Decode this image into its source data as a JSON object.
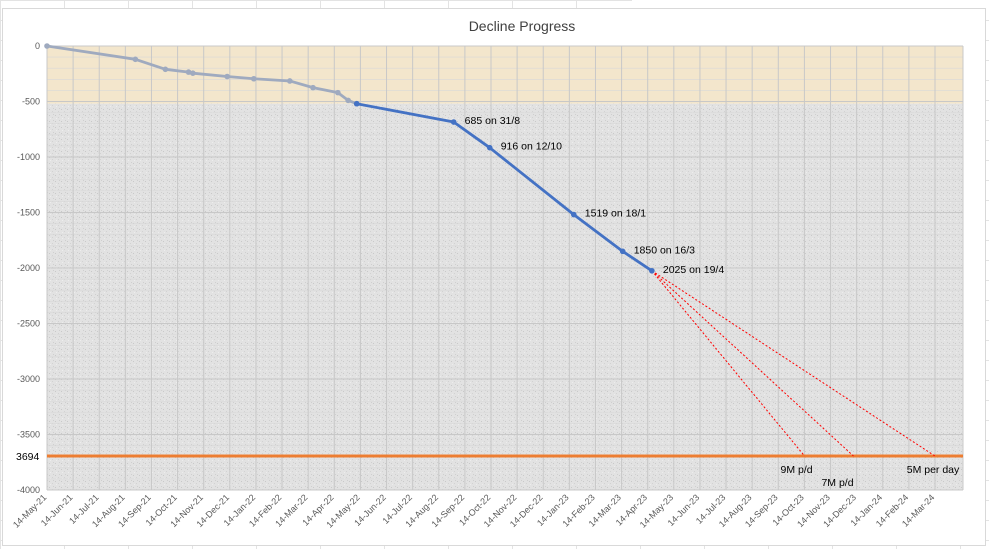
{
  "chart_data": {
    "type": "line",
    "title": "Decline Progress",
    "xlabel": "",
    "ylabel": "",
    "x_tick_labels": [
      "14-May-21",
      "14-Jun-21",
      "14-Jul-21",
      "14-Aug-21",
      "14-Sep-21",
      "14-Oct-21",
      "14-Nov-21",
      "14-Dec-21",
      "14-Jan-22",
      "14-Feb-22",
      "14-Mar-22",
      "14-Apr-22",
      "14-May-22",
      "14-Jun-22",
      "14-Jul-22",
      "14-Aug-22",
      "14-Sep-22",
      "14-Oct-22",
      "14-Nov-22",
      "14-Dec-22",
      "14-Jan-23",
      "14-Feb-23",
      "14-Mar-23",
      "14-Apr-23",
      "14-May-23",
      "14-Jun-23",
      "14-Jul-23",
      "14-Aug-23",
      "14-Sep-23",
      "14-Oct-23",
      "14-Nov-23",
      "14-Dec-23",
      "14-Jan-24",
      "14-Feb-24",
      "14-Mar-24"
    ],
    "y_tick_labels": [
      "0",
      "-500",
      "-1000",
      "-1500",
      "-2000",
      "-2500",
      "-3000",
      "-3500",
      "-4000"
    ],
    "ylim": [
      -4000,
      0
    ],
    "grid": true,
    "series": [
      {
        "color": "#9faabf",
        "points": [
          {
            "x": "2021-05-14",
            "y": 0
          },
          {
            "x": "2021-08-25",
            "y": -120
          },
          {
            "x": "2021-09-29",
            "y": -210
          },
          {
            "x": "2021-10-26",
            "y": -235
          },
          {
            "x": "2021-10-31",
            "y": -245
          },
          {
            "x": "2021-12-10",
            "y": -275
          },
          {
            "x": "2022-01-10",
            "y": -295
          },
          {
            "x": "2022-02-21",
            "y": -315
          },
          {
            "x": "2022-03-20",
            "y": -375
          },
          {
            "x": "2022-04-18",
            "y": -420
          },
          {
            "x": "2022-04-30",
            "y": -490
          },
          {
            "x": "2022-05-10",
            "y": -520
          }
        ]
      },
      {
        "color": "#4472c4",
        "points": [
          {
            "x": "2022-05-10",
            "y": -520
          },
          {
            "x": "2022-08-31",
            "y": -685
          },
          {
            "x": "2022-10-12",
            "y": -916
          },
          {
            "x": "2023-01-18",
            "y": -1519
          },
          {
            "x": "2023-03-16",
            "y": -1850
          },
          {
            "x": "2023-04-19",
            "y": -2025
          }
        ]
      }
    ],
    "annotations": [
      {
        "text": "685 on 31/8",
        "x": "2022-08-31",
        "y": -685
      },
      {
        "text": "916 on 12/10",
        "x": "2022-10-12",
        "y": -916
      },
      {
        "text": "1519 on 18/1",
        "x": "2023-01-18",
        "y": -1519
      },
      {
        "text": "1850 on 16/3",
        "x": "2023-03-16",
        "y": -1850
      },
      {
        "text": "2025 on 19/4",
        "x": "2023-04-19",
        "y": -2025
      }
    ],
    "target": {
      "label": "3694",
      "y": -3694,
      "color": "#ed7d31"
    },
    "projections": [
      {
        "label": "9M p/d",
        "from": {
          "x": "2023-04-19",
          "y": -2025
        },
        "to": {
          "x": "2023-10-14",
          "y": -3694
        }
      },
      {
        "label": "7M p/d",
        "from": {
          "x": "2023-04-19",
          "y": -2025
        },
        "to": {
          "x": "2023-12-10",
          "y": -3694
        }
      },
      {
        "label": "5M per day",
        "from": {
          "x": "2023-04-19",
          "y": -2025
        },
        "to": {
          "x": "2024-03-14",
          "y": -3694
        }
      }
    ],
    "projection_color": "#ff0000",
    "bands": [
      {
        "y_from": 0,
        "y_to": -520,
        "color": "#f3e6cc"
      },
      {
        "y_from": -520,
        "y_to": -4000,
        "color": "#e0e0e0"
      }
    ]
  }
}
